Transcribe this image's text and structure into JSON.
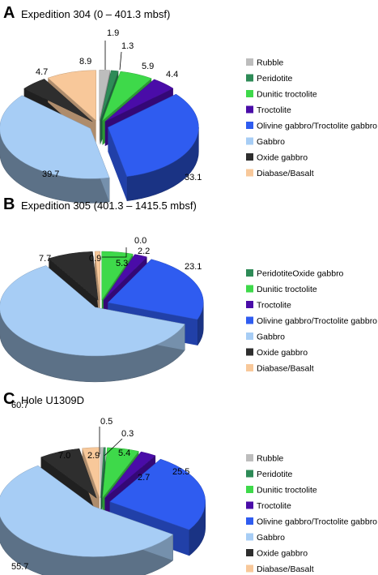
{
  "chart_data": [
    {
      "type": "pie",
      "panel": "A",
      "title": "Expedition 304 (0 – 401.3 mbsf)",
      "slices": [
        {
          "label": "Rubble",
          "value": 1.9,
          "value_label": "1.9",
          "color": "#bdbdbd"
        },
        {
          "label": "Peridotite",
          "value": 1.3,
          "value_label": "1.3",
          "color": "#2e8b57"
        },
        {
          "label": "Dunitic troctolite",
          "value": 5.9,
          "value_label": "5.9",
          "color": "#3ed94a"
        },
        {
          "label": "Troctolite",
          "value": 4.4,
          "value_label": "4.4",
          "color": "#4a0ca8"
        },
        {
          "label": "Olivine gabbro/Troctolite gabbro",
          "value": 33.1,
          "value_label": "33.1",
          "color": "#2f5cf0"
        },
        {
          "label": "Gabbro",
          "value": 39.7,
          "value_label": "39.7",
          "color": "#a7cdf5"
        },
        {
          "label": "Oxide gabbro",
          "value": 4.7,
          "value_label": "4.7",
          "color": "#2e2e2e"
        },
        {
          "label": "Diabase/Basalt",
          "value": 8.9,
          "value_label": "8.9",
          "color": "#f8c89a"
        }
      ],
      "legend": [
        {
          "label": "Rubble",
          "color": "#bdbdbd"
        },
        {
          "label": "Peridotite",
          "color": "#2e8b57"
        },
        {
          "label": "Dunitic troctolite",
          "color": "#3ed94a"
        },
        {
          "label": "Troctolite",
          "color": "#4a0ca8"
        },
        {
          "label": "Olivine gabbro/Troctolite gabbro",
          "color": "#2f5cf0"
        },
        {
          "label": "Gabbro",
          "color": "#a7cdf5"
        },
        {
          "label": "Oxide gabbro",
          "color": "#2e2e2e"
        },
        {
          "label": "Diabase/Basalt",
          "color": "#f8c89a"
        }
      ]
    },
    {
      "type": "pie",
      "panel": "B",
      "title": "Expedition 305 (401.3 – 1415.5 mbsf)",
      "slices": [
        {
          "label": "Peridotite",
          "value": 0.0,
          "value_label": "0.0",
          "color": "#2e8b57"
        },
        {
          "label": "Dunitic troctolite",
          "value": 5.3,
          "value_label": "5.3",
          "color": "#3ed94a"
        },
        {
          "label": "Troctolite",
          "value": 2.2,
          "value_label": "2.2",
          "color": "#4a0ca8"
        },
        {
          "label": "Olivine gabbro/Troctolite gabbro",
          "value": 23.1,
          "value_label": "23.1",
          "color": "#2f5cf0"
        },
        {
          "label": "Gabbro",
          "value": 60.7,
          "value_label": "60.7",
          "color": "#a7cdf5"
        },
        {
          "label": "Oxide gabbro",
          "value": 7.7,
          "value_label": "7.7",
          "color": "#2e2e2e"
        },
        {
          "label": "Diabase/Basalt",
          "value": 0.9,
          "value_label": "0.9",
          "color": "#f8c89a"
        }
      ],
      "legend": [
        {
          "label": "PeridotiteOxide gabbro",
          "color": "#2e8b57"
        },
        {
          "label": "Dunitic troctolite",
          "color": "#3ed94a"
        },
        {
          "label": "Troctolite",
          "color": "#4a0ca8"
        },
        {
          "label": "Olivine gabbro/Troctolite gabbro",
          "color": "#2f5cf0"
        },
        {
          "label": "Gabbro",
          "color": "#a7cdf5"
        },
        {
          "label": "Oxide gabbro",
          "color": "#2e2e2e"
        },
        {
          "label": "Diabase/Basalt",
          "color": "#f8c89a"
        }
      ]
    },
    {
      "type": "pie",
      "panel": "C",
      "title": "Hole U1309D",
      "slices": [
        {
          "label": "Rubble",
          "value": 0.5,
          "value_label": "0.5",
          "color": "#bdbdbd"
        },
        {
          "label": "Peridotite",
          "value": 0.3,
          "value_label": "0.3",
          "color": "#2e8b57"
        },
        {
          "label": "Dunitic troctolite",
          "value": 5.4,
          "value_label": "5.4",
          "color": "#3ed94a"
        },
        {
          "label": "Troctolite",
          "value": 2.7,
          "value_label": "2.7",
          "color": "#4a0ca8"
        },
        {
          "label": "Olivine gabbro/Troctolite gabbro",
          "value": 25.5,
          "value_label": "25.5",
          "color": "#2f5cf0"
        },
        {
          "label": "Gabbro",
          "value": 55.7,
          "value_label": "55.7",
          "color": "#a7cdf5"
        },
        {
          "label": "Oxide gabbro",
          "value": 7.0,
          "value_label": "7.0",
          "color": "#2e2e2e"
        },
        {
          "label": "Diabase/Basalt",
          "value": 2.9,
          "value_label": "2.9",
          "color": "#f8c89a"
        }
      ],
      "legend": [
        {
          "label": "Rubble",
          "color": "#bdbdbd"
        },
        {
          "label": "Peridotite",
          "color": "#2e8b57"
        },
        {
          "label": "Dunitic troctolite",
          "color": "#3ed94a"
        },
        {
          "label": "Troctolite",
          "color": "#4a0ca8"
        },
        {
          "label": "Olivine gabbro/Troctolite gabbro",
          "color": "#2f5cf0"
        },
        {
          "label": "Gabbro",
          "color": "#a7cdf5"
        },
        {
          "label": "Oxide gabbro",
          "color": "#2e2e2e"
        },
        {
          "label": "Diabase/Basalt",
          "color": "#f8c89a"
        }
      ]
    }
  ]
}
